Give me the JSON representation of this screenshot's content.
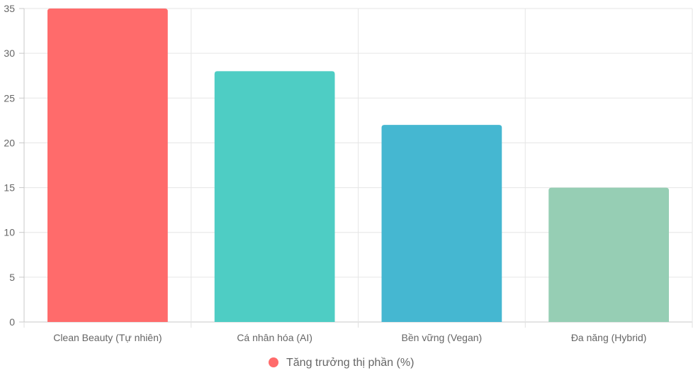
{
  "chart_data": {
    "type": "bar",
    "categories": [
      "Clean Beauty (Tự nhiên)",
      "Cá nhân hóa (AI)",
      "Bền vững (Vegan)",
      "Đa năng (Hybrid)"
    ],
    "series": [
      {
        "name": "Tăng trưởng thị phần (%)",
        "values": [
          35,
          28,
          22,
          15
        ],
        "colors": [
          "#FF6B6B",
          "#4ECDC4",
          "#45B7D1",
          "#96CEB4"
        ]
      }
    ],
    "ylim": [
      0,
      35
    ],
    "yticks": [
      0,
      5,
      10,
      15,
      20,
      25,
      30,
      35
    ],
    "grid": true,
    "legend_position": "bottom"
  }
}
